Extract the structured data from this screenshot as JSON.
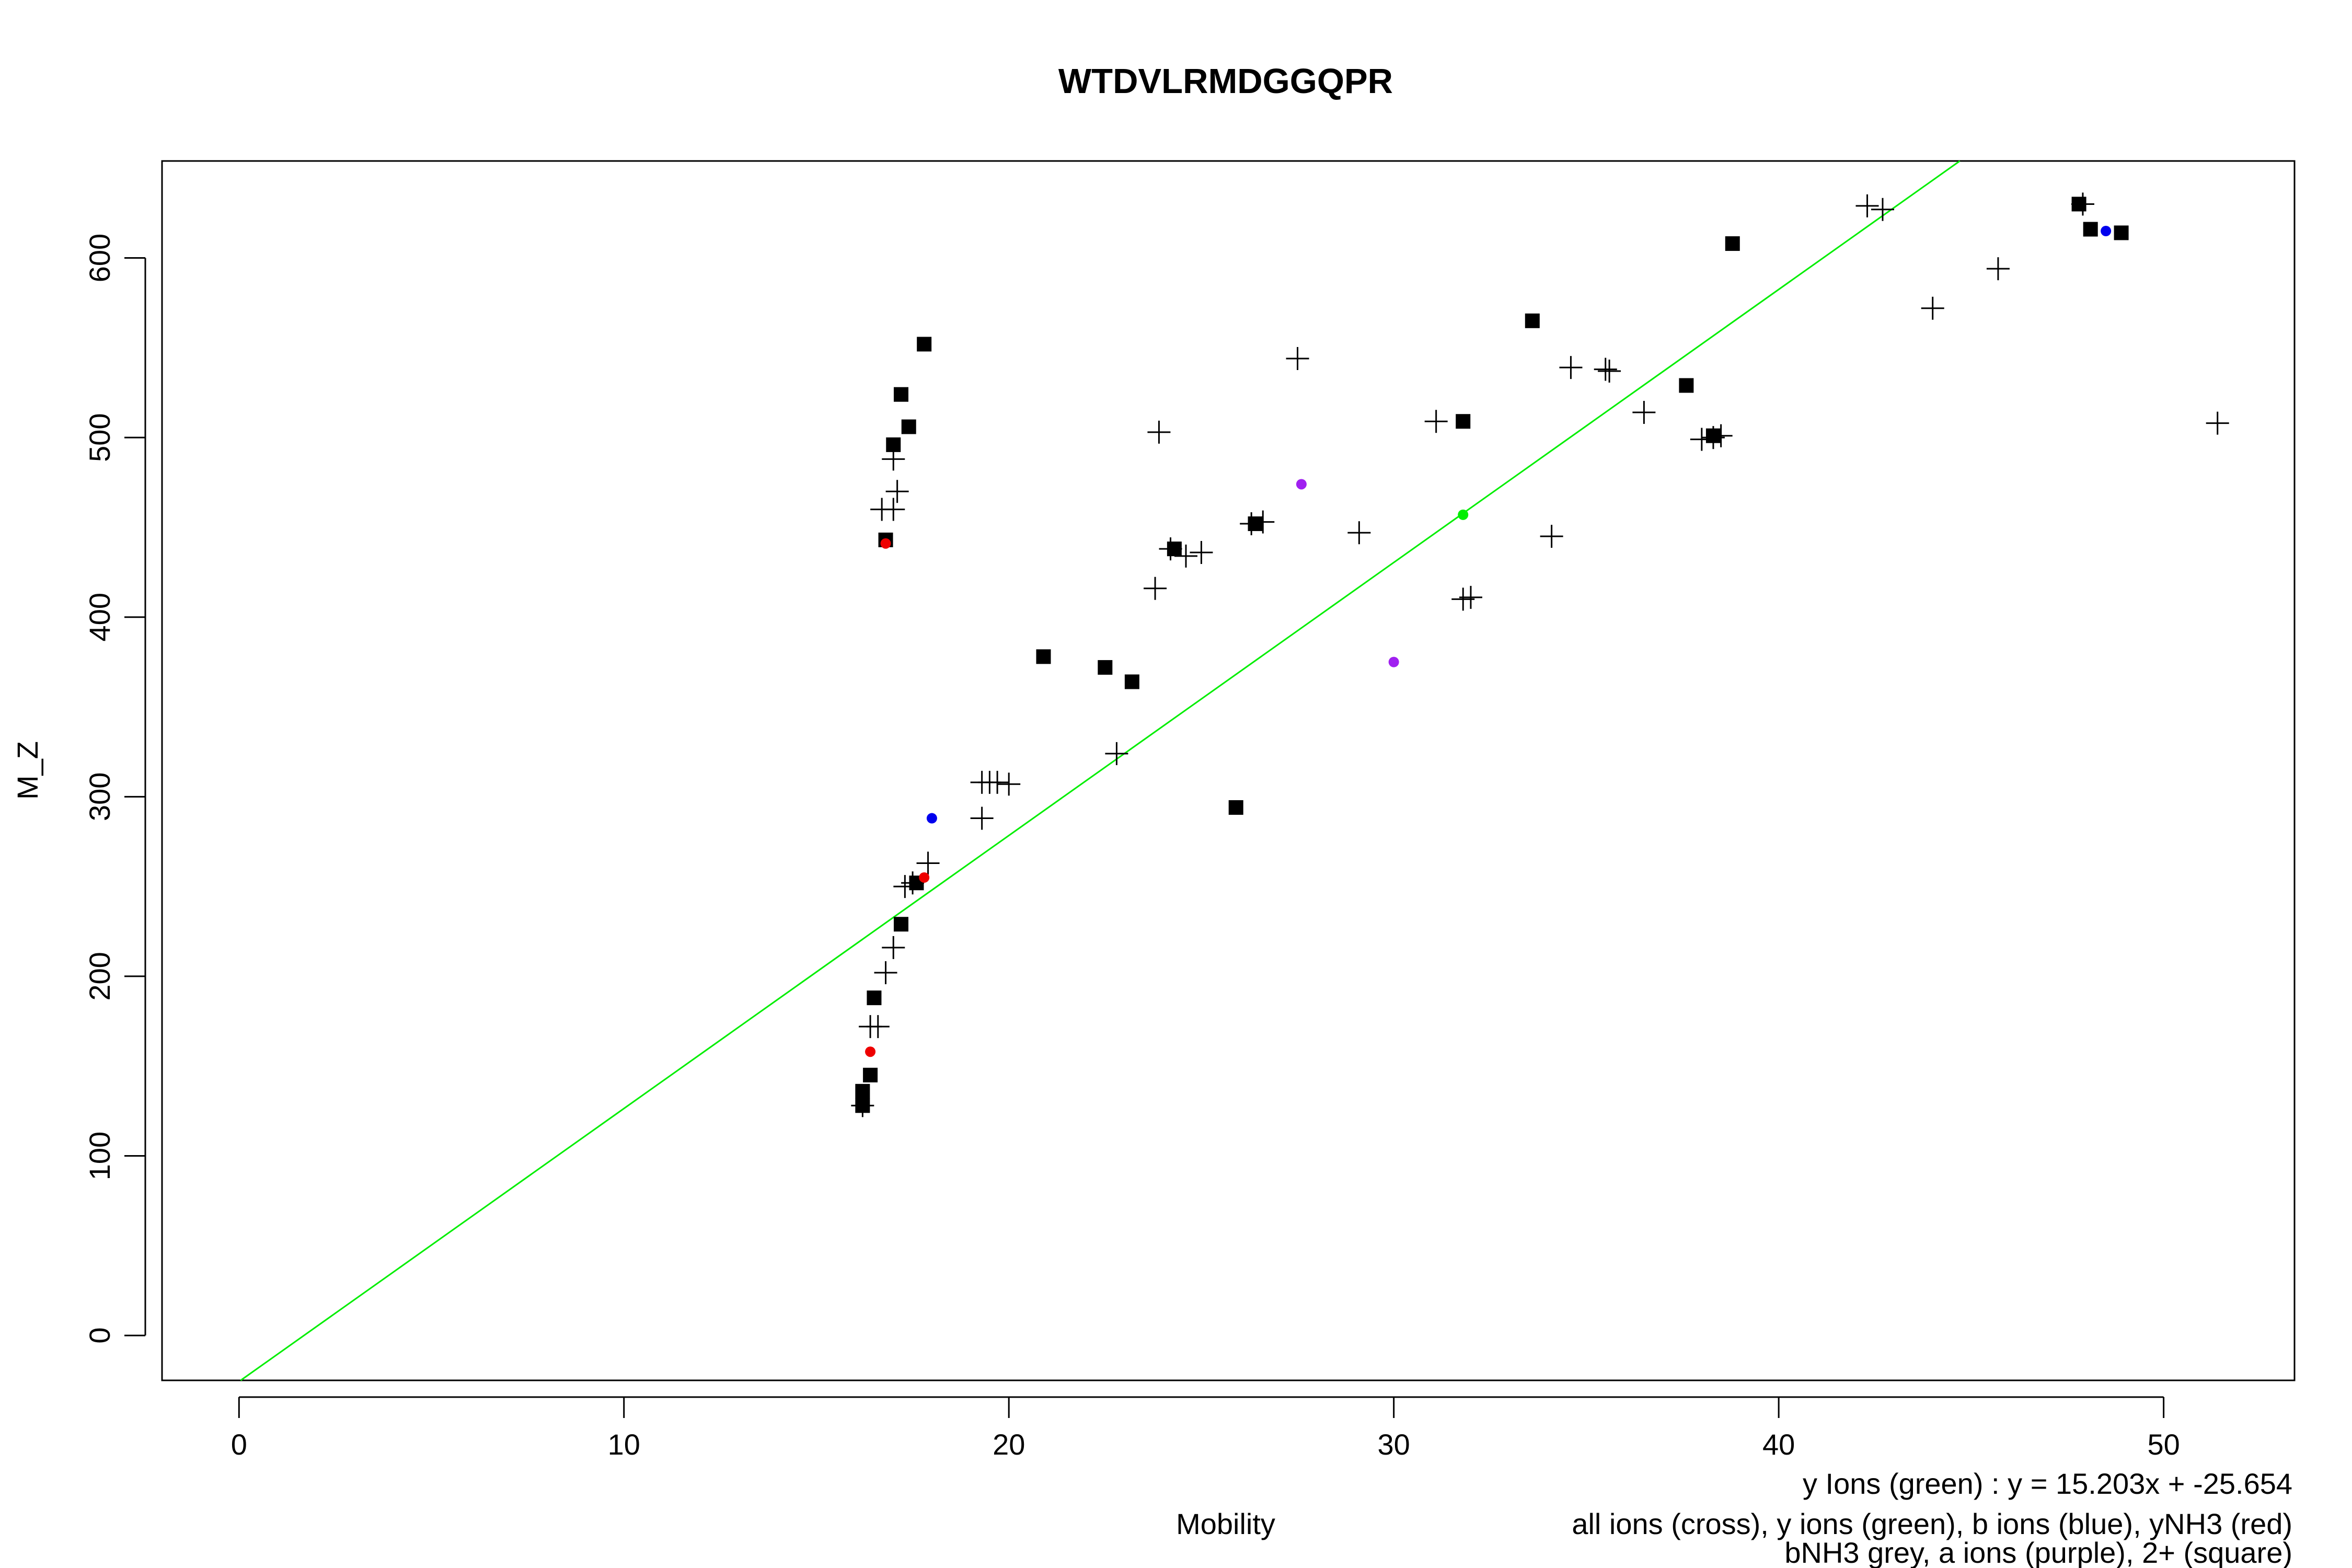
{
  "chart_data": {
    "type": "scatter",
    "title": "WTDVLRMDGGQPR",
    "xlabel": "Mobility",
    "ylabel": "M_Z",
    "xlim": [
      -2,
      53.4
    ],
    "ylim": [
      -25,
      654
    ],
    "x_ticks": [
      "0",
      "10",
      "20",
      "30",
      "40",
      "50"
    ],
    "y_ticks": [
      "0",
      "100",
      "200",
      "300",
      "400",
      "500",
      "600"
    ],
    "grid": false,
    "legend_position": "bottom-right",
    "regression_text": "y Ions (green) : y = 15.203x + -25.654",
    "legend_line1": "all ions (cross), y ions (green), b ions (blue), yNH3 (red)",
    "legend_line2": "bNH3 grey, a ions (purple), 2+ (square)",
    "regression": {
      "slope": 15.203,
      "intercept": -25.654,
      "color": "#00ee00"
    },
    "colors": {
      "black": "#000000",
      "green": "#00ee00",
      "blue": "#0000ee",
      "red": "#ee0000",
      "purple": "#a020f0"
    },
    "series": [
      {
        "name": "all ions (cross)",
        "marker": "cross",
        "color": "#000000",
        "points": [
          [
            16.2,
            128
          ],
          [
            16.4,
            172
          ],
          [
            16.6,
            172
          ],
          [
            16.8,
            202
          ],
          [
            17.0,
            216
          ],
          [
            17.3,
            250
          ],
          [
            17.5,
            252
          ],
          [
            17.9,
            263
          ],
          [
            16.7,
            460
          ],
          [
            17.0,
            460
          ],
          [
            17.1,
            470
          ],
          [
            17.0,
            488
          ],
          [
            19.3,
            288
          ],
          [
            19.3,
            308
          ],
          [
            19.5,
            308
          ],
          [
            19.7,
            308
          ],
          [
            20.0,
            307
          ],
          [
            22.8,
            324
          ],
          [
            23.8,
            416
          ],
          [
            23.9,
            503
          ],
          [
            24.2,
            438
          ],
          [
            24.6,
            434
          ],
          [
            25.0,
            436
          ],
          [
            26.3,
            452
          ],
          [
            26.6,
            453
          ],
          [
            27.5,
            544
          ],
          [
            29.1,
            447
          ],
          [
            31.1,
            509
          ],
          [
            31.8,
            410
          ],
          [
            32.0,
            411
          ],
          [
            34.1,
            445
          ],
          [
            34.6,
            539
          ],
          [
            35.5,
            538
          ],
          [
            35.6,
            537
          ],
          [
            36.5,
            514
          ],
          [
            38.0,
            499
          ],
          [
            38.3,
            500
          ],
          [
            38.5,
            501
          ],
          [
            42.3,
            629
          ],
          [
            42.7,
            627
          ],
          [
            44.0,
            572
          ],
          [
            45.7,
            594
          ],
          [
            47.9,
            630
          ],
          [
            51.4,
            508
          ]
        ]
      },
      {
        "name": "2+ (square)",
        "marker": "square",
        "color": "#000000",
        "points": [
          [
            16.2,
            128
          ],
          [
            16.2,
            136
          ],
          [
            16.4,
            145
          ],
          [
            16.5,
            188
          ],
          [
            16.8,
            443
          ],
          [
            17.0,
            496
          ],
          [
            17.2,
            524
          ],
          [
            17.4,
            506
          ],
          [
            17.6,
            252
          ],
          [
            17.2,
            229
          ],
          [
            17.8,
            552
          ],
          [
            20.9,
            378
          ],
          [
            22.5,
            372
          ],
          [
            23.2,
            364
          ],
          [
            24.3,
            438
          ],
          [
            25.9,
            294
          ],
          [
            26.4,
            452
          ],
          [
            31.8,
            509
          ],
          [
            33.6,
            565
          ],
          [
            37.6,
            529
          ],
          [
            38.3,
            501
          ],
          [
            38.8,
            608
          ],
          [
            47.8,
            630
          ],
          [
            48.1,
            616
          ],
          [
            48.9,
            614
          ]
        ]
      },
      {
        "name": "y ions (green)",
        "marker": "dot",
        "color": "#00ee00",
        "points": [
          [
            31.8,
            457
          ]
        ]
      },
      {
        "name": "b ions (blue)",
        "marker": "dot",
        "color": "#0000ee",
        "points": [
          [
            18.0,
            288
          ],
          [
            48.5,
            615
          ]
        ]
      },
      {
        "name": "yNH3 (red)",
        "marker": "dot",
        "color": "#ee0000",
        "points": [
          [
            16.8,
            441
          ],
          [
            17.8,
            255
          ],
          [
            16.4,
            158
          ]
        ]
      },
      {
        "name": "a ions (purple)",
        "marker": "dot",
        "color": "#a020f0",
        "points": [
          [
            27.6,
            474
          ],
          [
            30.0,
            375
          ]
        ]
      }
    ]
  }
}
